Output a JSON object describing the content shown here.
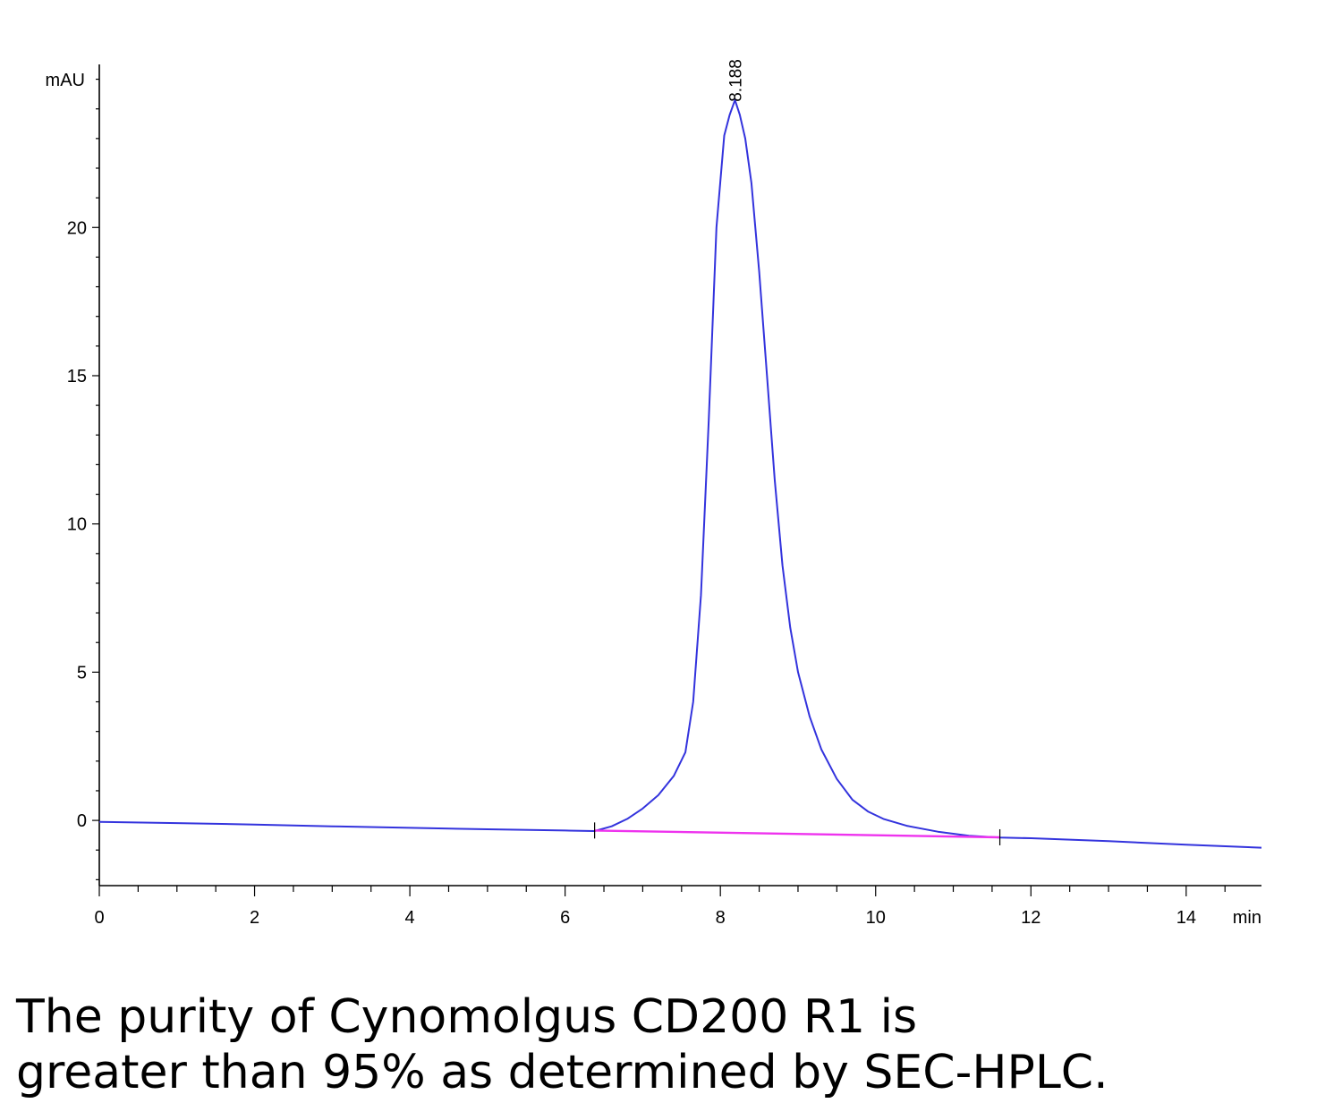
{
  "chart_data": {
    "type": "line",
    "title": "",
    "xlabel": "min",
    "ylabel": "mAU",
    "xlim": [
      0,
      14.97
    ],
    "ylim": [
      -2.2,
      25.5
    ],
    "x_ticks": [
      0,
      2,
      4,
      6,
      8,
      10,
      12,
      14
    ],
    "y_ticks": [
      0,
      5,
      10,
      15,
      20
    ],
    "grid": false,
    "legend": "none",
    "peak_annotation": {
      "label": "8.188",
      "x": 8.188,
      "y": 24.3
    },
    "integration_marks": [
      6.38,
      11.6
    ],
    "series": [
      {
        "color": "#3333dd",
        "x": [
          0,
          1,
          2,
          3,
          4,
          5,
          6,
          6.38,
          6.6,
          6.8,
          7.0,
          7.2,
          7.4,
          7.55,
          7.65,
          7.75,
          7.85,
          7.95,
          8.05,
          8.12,
          8.188,
          8.25,
          8.32,
          8.4,
          8.5,
          8.6,
          8.7,
          8.8,
          8.9,
          9.0,
          9.15,
          9.3,
          9.5,
          9.7,
          9.9,
          10.1,
          10.4,
          10.8,
          11.2,
          11.6,
          12,
          13,
          14,
          14.97
        ],
        "y": [
          -0.05,
          -0.09,
          -0.14,
          -0.2,
          -0.25,
          -0.3,
          -0.34,
          -0.36,
          -0.2,
          0.05,
          0.4,
          0.85,
          1.5,
          2.3,
          4.0,
          7.6,
          13.5,
          20.0,
          23.1,
          23.8,
          24.3,
          23.8,
          23.0,
          21.5,
          18.5,
          15.0,
          11.5,
          8.6,
          6.5,
          5.0,
          3.5,
          2.4,
          1.4,
          0.7,
          0.3,
          0.05,
          -0.18,
          -0.38,
          -0.52,
          -0.58,
          -0.6,
          -0.7,
          -0.82,
          -0.92
        ]
      },
      {
        "color": "#ee33ee",
        "x": [
          6.38,
          11.6
        ],
        "y": [
          -0.34,
          -0.57
        ]
      }
    ]
  },
  "caption": {
    "line1": "The purity of Cynomolgus CD200 R1 is",
    "line2": "greater than 95% as determined by SEC-HPLC."
  }
}
